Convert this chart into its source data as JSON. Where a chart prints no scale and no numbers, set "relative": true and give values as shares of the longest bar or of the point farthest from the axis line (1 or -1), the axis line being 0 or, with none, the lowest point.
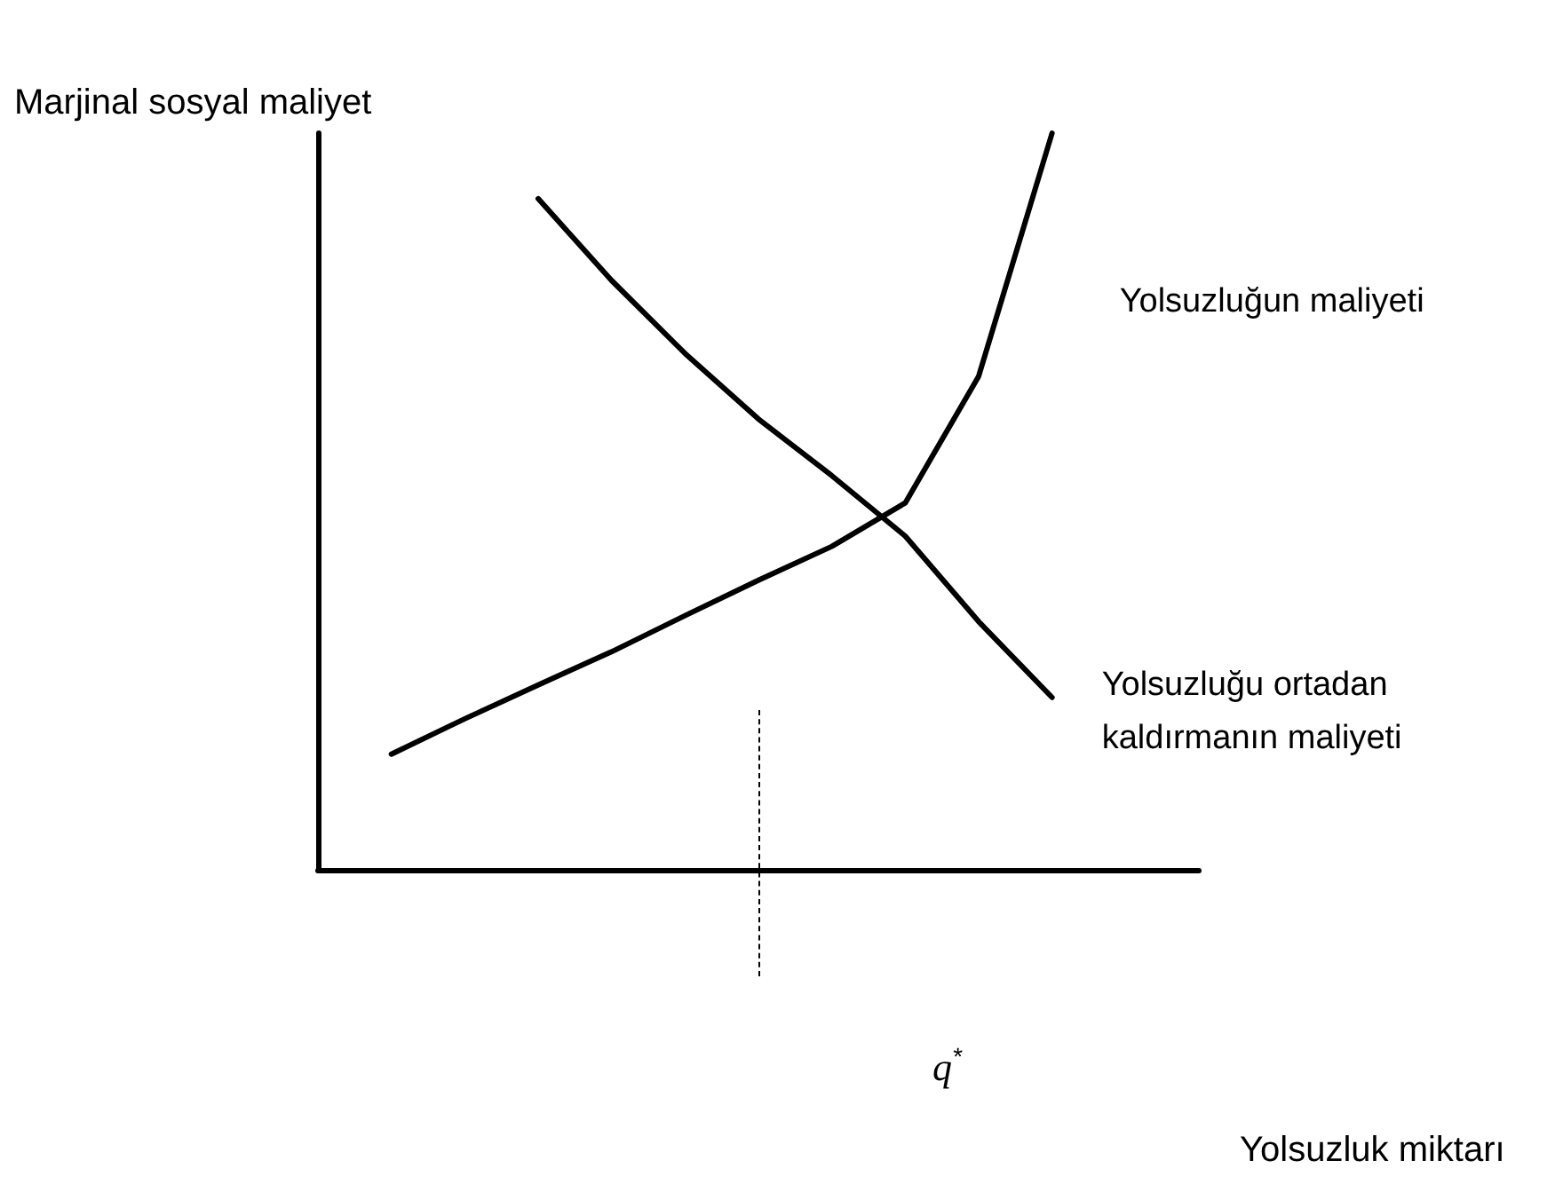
{
  "chart_data": {
    "type": "line",
    "relative": true,
    "ylabel": "Marjinal sosyal maliyet",
    "grid": false,
    "legend": false,
    "marker": "none",
    "line_style": "solid",
    "categories": [
      null,
      null,
      null,
      null,
      null,
      null,
      null,
      null,
      null,
      null,
      null,
      null,
      null
    ],
    "series": [
      {
        "name": "Yolsuzluğun maliyeti",
        "color": "#000000",
        "values": [
          null,
          0.157,
          0.205,
          0.251,
          0.296,
          0.345,
          0.393,
          0.439,
          0.498,
          0.67,
          1.0,
          null,
          null
        ]
      },
      {
        "name": "Yolsuzluğu ortadan kaldırmanın maliyeti",
        "color": "#000000",
        "values": [
          null,
          null,
          null,
          0.911,
          0.8,
          0.701,
          0.612,
          0.535,
          0.453,
          0.337,
          0.234,
          null,
          null
        ]
      }
    ],
    "annotations": [
      "q$^{*}$",
      "Yolsuzluk miktarı"
    ]
  }
}
